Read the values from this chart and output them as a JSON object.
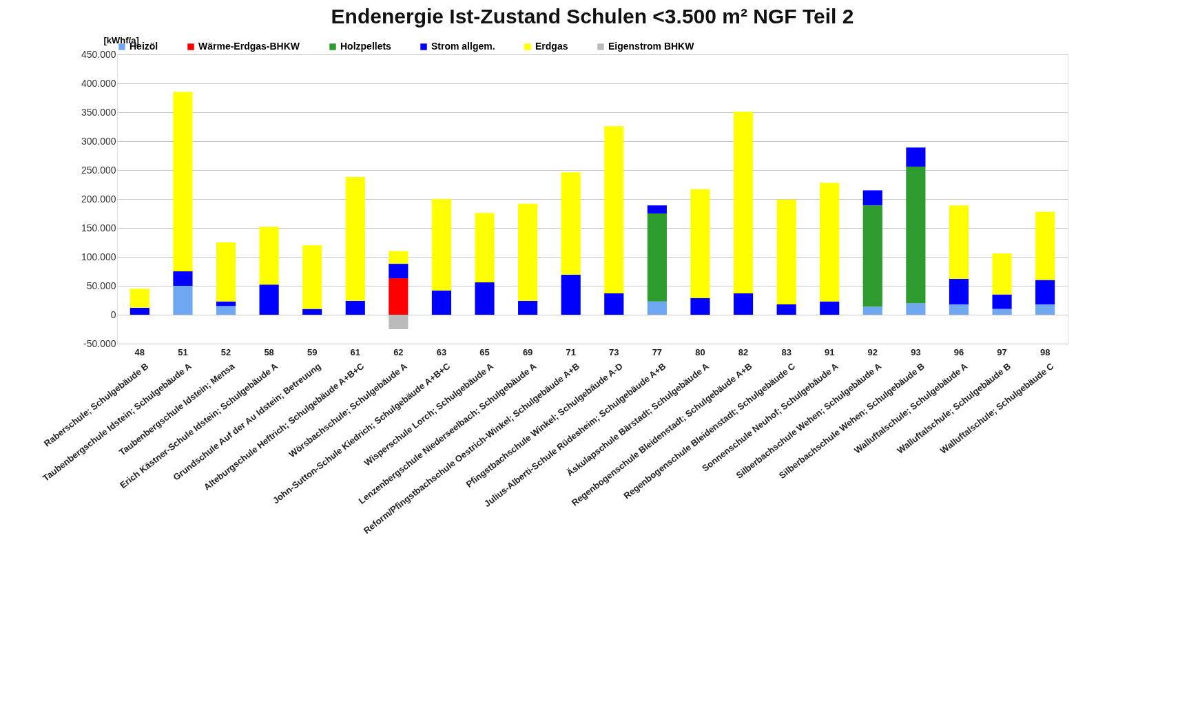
{
  "chart_data": {
    "type": "bar",
    "stacked": true,
    "title": "Endenergie Ist-Zustand Schulen <3.500 m² NGF  Teil 2",
    "ylabel": "[kWhf/a]",
    "categories": [
      "48",
      "51",
      "52",
      "58",
      "59",
      "61",
      "62",
      "63",
      "65",
      "69",
      "71",
      "73",
      "77",
      "80",
      "82",
      "83",
      "91",
      "92",
      "93",
      "96",
      "97",
      "98"
    ],
    "series": [
      {
        "name": "Heizöl",
        "color": "#6fa8f0",
        "values": [
          null,
          50000,
          15000,
          null,
          null,
          null,
          null,
          null,
          null,
          null,
          null,
          null,
          23000,
          null,
          null,
          null,
          null,
          14000,
          20000,
          18000,
          10000,
          18000
        ]
      },
      {
        "name": "Wärme-Erdgas-BHKW",
        "color": "#ff0000",
        "values": [
          null,
          null,
          null,
          null,
          null,
          null,
          63000,
          null,
          null,
          null,
          null,
          null,
          null,
          null,
          null,
          null,
          null,
          null,
          null,
          null,
          null,
          null
        ]
      },
      {
        "name": "Holzpellets",
        "color": "#2e9b2e",
        "values": [
          null,
          null,
          null,
          null,
          null,
          null,
          null,
          null,
          null,
          null,
          null,
          null,
          152000,
          null,
          null,
          null,
          null,
          175000,
          236000,
          null,
          null,
          null
        ]
      },
      {
        "name": "Strom allgem.",
        "color": "#0000ff",
        "values": [
          12000,
          25000,
          8000,
          52000,
          10000,
          24000,
          25000,
          42000,
          56000,
          24000,
          69000,
          37000,
          14000,
          29000,
          37000,
          18000,
          23000,
          26000,
          33000,
          44000,
          25000,
          42000
        ]
      },
      {
        "name": "Erdgas",
        "color": "#ffff00",
        "values": [
          33000,
          310000,
          102000,
          100000,
          110000,
          214000,
          22000,
          158000,
          120000,
          168000,
          177000,
          289000,
          null,
          188000,
          314000,
          181000,
          205000,
          null,
          null,
          127000,
          71000,
          118000
        ]
      },
      {
        "name": "Eigenstrom BHKW",
        "color": "#bbbbbb",
        "values": [
          null,
          null,
          null,
          null,
          null,
          null,
          -25000,
          null,
          null,
          null,
          null,
          null,
          null,
          null,
          null,
          null,
          null,
          null,
          null,
          null,
          null,
          null
        ]
      }
    ],
    "ylim": [
      -50000,
      450000
    ],
    "yticks": [
      {
        "value": -50000,
        "label": "-50.000"
      },
      {
        "value": 0,
        "label": "0"
      },
      {
        "value": 50000,
        "label": "50.000"
      },
      {
        "value": 100000,
        "label": "100.000"
      },
      {
        "value": 150000,
        "label": "150.000"
      },
      {
        "value": 200000,
        "label": "200.000"
      },
      {
        "value": 250000,
        "label": "250.000"
      },
      {
        "value": 300000,
        "label": "300.000"
      },
      {
        "value": 350000,
        "label": "350.000"
      },
      {
        "value": 400000,
        "label": "400.000"
      },
      {
        "value": 450000,
        "label": "450.000"
      }
    ],
    "grid": "y",
    "legend": "top",
    "annotations": [
      "Raberschule; Schulgebäude B",
      "Taubenbergschule Idstein; Schulgebäude A",
      "Taubenbergschule Idstein; Mensa",
      "Erich Kästner-Schule Idstein; Schulgebäude A",
      "Grundschule Auf der Au Idstein; Betreuung",
      "Alteburgschule Heftrich; Schulgebäude A+B+C",
      "Wörsbachschule; Schulgebäude A",
      "John-Sutton-Schule Kiedrich; Schulgebäude A+B+C",
      "Wisperschule Lorch; Schulgebäude A",
      "Lenzenbergschule Niederseelbach; Schulgebäude A",
      "Reform/Pfingstbachschule Oestrich-Winkel; Schulgebäude A+B",
      "Pfingstbachschule Winkel; Schulgebäude A-D",
      "Julius-Alberti-Schule Rüdesheim; Schulgebäude A+B",
      "Äskulapschule Bärstadt; Schulgebäude A",
      "Regenbogenschule Bleidenstadt; Schulgebäude A+B",
      "Regenbogenschule Bleidenstadt; Schulgebäude C",
      "Sonnenschule Neuhof; Schulgebäude A",
      "Silberbachschule Wehen; Schulgebäude A",
      "Silberbachschule Wehen; Schulgebäude B",
      "Walluftalschule; Schulgebäude A",
      "Walluftalschule; Schulgebäude B",
      "Walluftalschule; Schulgebäude C"
    ]
  }
}
